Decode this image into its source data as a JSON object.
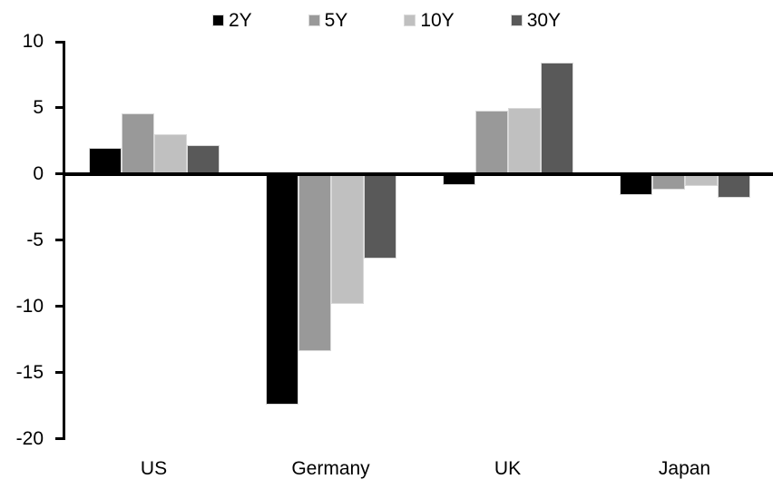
{
  "chart_data": {
    "type": "bar",
    "title": "",
    "xlabel": "",
    "ylabel": "",
    "categories": [
      "US",
      "Germany",
      "UK",
      "Japan"
    ],
    "series": [
      {
        "name": "2Y",
        "color": "#000000",
        "values": [
          2.0,
          -17.4,
          -0.8,
          -1.6
        ]
      },
      {
        "name": "5Y",
        "color": "#999999",
        "values": [
          4.6,
          -13.4,
          4.8,
          -1.2
        ]
      },
      {
        "name": "10Y",
        "color": "#c0c0c0",
        "values": [
          3.0,
          -9.8,
          5.0,
          -0.9
        ]
      },
      {
        "name": "30Y",
        "color": "#595959",
        "values": [
          2.2,
          -6.4,
          8.4,
          -1.8
        ]
      }
    ],
    "ylim": [
      -20,
      10
    ],
    "yticks": [
      10,
      5,
      0,
      -5,
      -10,
      -15,
      -20
    ],
    "legend_position": "top",
    "grid": false,
    "axis_color": "#000000",
    "bar_edge_color": "#d9d9d9"
  }
}
